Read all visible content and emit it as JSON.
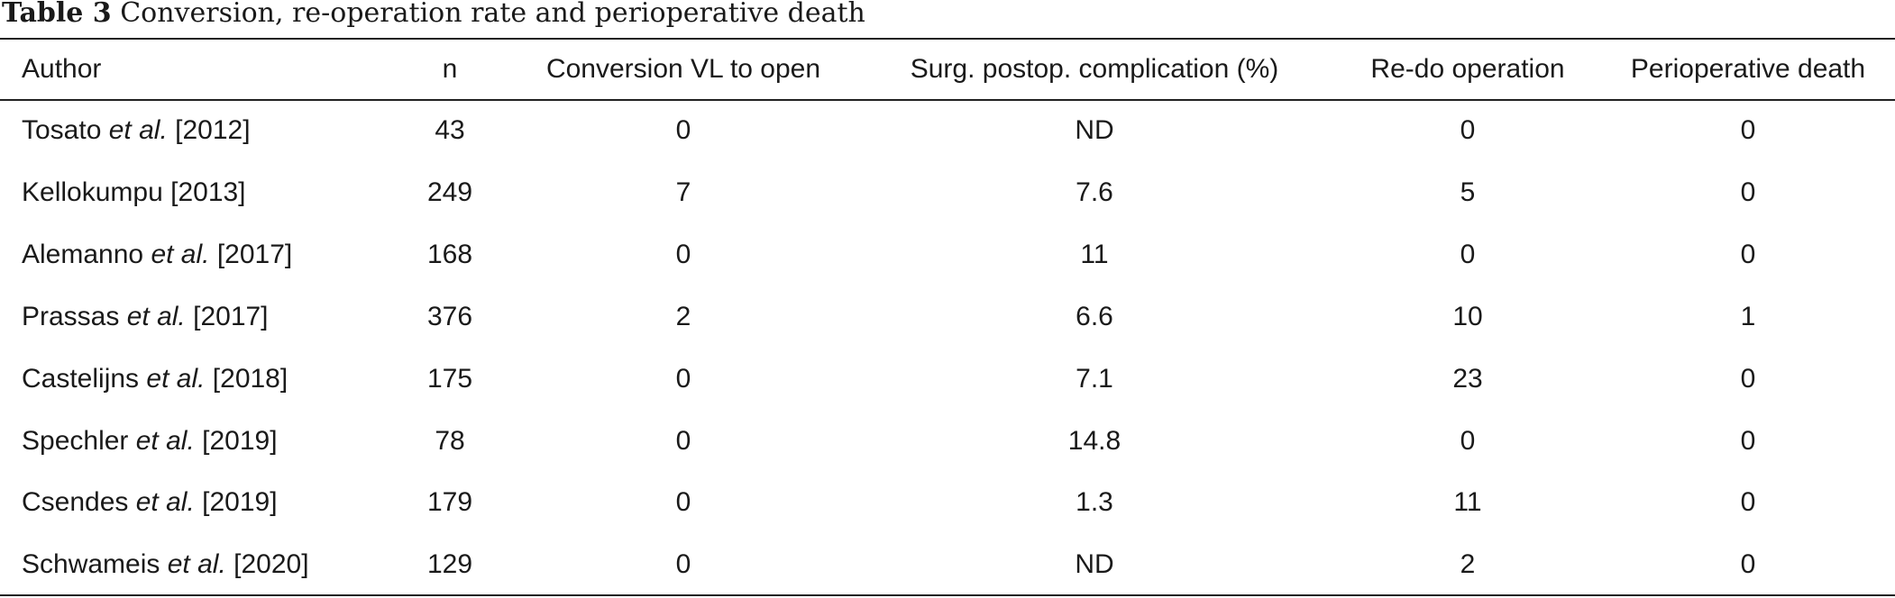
{
  "caption": {
    "label": "Table 3",
    "text": "Conversion, re-operation rate and perioperative death"
  },
  "table": {
    "columns": [
      "Author",
      "n",
      "Conversion VL to open",
      "Surg. postop. complication (%)",
      "Re-do operation",
      "Perioperative death"
    ],
    "rows": [
      {
        "author": "Tosato",
        "etal": "et al.",
        "year": "[2012]",
        "n": "43",
        "conversion": "0",
        "complication": "ND",
        "redo": "0",
        "death": "0"
      },
      {
        "author": "Kellokumpu",
        "etal": "",
        "year": "[2013]",
        "n": "249",
        "conversion": "7",
        "complication": "7.6",
        "redo": "5",
        "death": "0"
      },
      {
        "author": "Alemanno",
        "etal": "et al.",
        "year": "[2017]",
        "n": "168",
        "conversion": "0",
        "complication": "11",
        "redo": "0",
        "death": "0"
      },
      {
        "author": "Prassas",
        "etal": "et al.",
        "year": "[2017]",
        "n": "376",
        "conversion": "2",
        "complication": "6.6",
        "redo": "10",
        "death": "1"
      },
      {
        "author": "Castelijns",
        "etal": "et al.",
        "year": "[2018]",
        "n": "175",
        "conversion": "0",
        "complication": "7.1",
        "redo": "23",
        "death": "0"
      },
      {
        "author": "Spechler",
        "etal": "et al.",
        "year": "[2019]",
        "n": "78",
        "conversion": "0",
        "complication": "14.8",
        "redo": "0",
        "death": "0"
      },
      {
        "author": "Csendes",
        "etal": "et al.",
        "year": "[2019]",
        "n": "179",
        "conversion": "0",
        "complication": "1.3",
        "redo": "11",
        "death": "0"
      },
      {
        "author": "Schwameis",
        "etal": "et al.",
        "year": "[2020]",
        "n": "129",
        "conversion": "0",
        "complication": "ND",
        "redo": "2",
        "death": "0"
      }
    ]
  }
}
